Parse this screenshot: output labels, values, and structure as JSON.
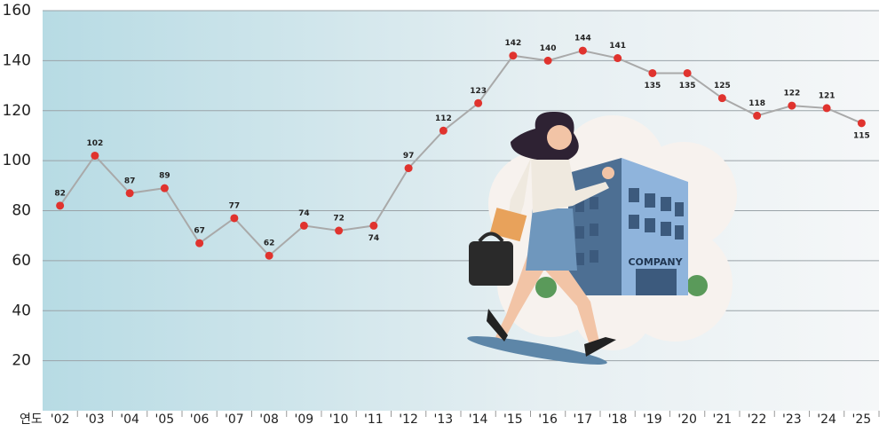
{
  "chart_data": {
    "type": "line",
    "categories": [
      "'02",
      "'03",
      "'04",
      "'05",
      "'06",
      "'07",
      "'08",
      "'09",
      "'10",
      "'11",
      "'12",
      "'13",
      "'14",
      "'15",
      "'16",
      "'17",
      "'18",
      "'19",
      "'20",
      "'21",
      "'22",
      "'23",
      "'24",
      "'25"
    ],
    "x_label": "연도",
    "series": [
      {
        "color": "#e0332e",
        "line_color": "#a9a9a9",
        "values": [
          82,
          102,
          87,
          89,
          67,
          77,
          62,
          74,
          72,
          74,
          97,
          112,
          123,
          142,
          140,
          144,
          141,
          135,
          135,
          125,
          118,
          122,
          121,
          115
        ]
      }
    ],
    "ylim": [
      0,
      160
    ],
    "yticks": [
      20,
      40,
      60,
      80,
      100,
      120,
      140,
      160
    ],
    "grid": true,
    "illustration_text": "COMPANY"
  }
}
